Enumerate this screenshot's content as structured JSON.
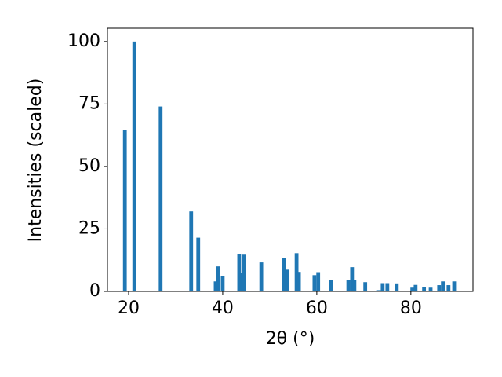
{
  "chart_data": {
    "type": "bar",
    "xlabel": "2θ (°)",
    "ylabel": "Intensities (scaled)",
    "x": [
      19.2,
      21.2,
      26.8,
      33.3,
      34.8,
      38.5,
      39.0,
      40.0,
      43.5,
      43.8,
      44.5,
      48.2,
      53.0,
      53.7,
      55.7,
      56.2,
      59.5,
      60.3,
      63.0,
      64.2,
      66.7,
      67.5,
      68.0,
      70.3,
      72.0,
      73.2,
      74.0,
      75.0,
      77.0,
      80.3,
      81.0,
      82.8,
      84.2,
      86.0,
      86.8,
      88.0,
      89.2
    ],
    "values": [
      64.6,
      100,
      74,
      32,
      21.5,
      4,
      10,
      6,
      15,
      7.5,
      14.7,
      11.6,
      13.5,
      8.7,
      15.3,
      7.8,
      6.5,
      7.7,
      4.6,
      0.3,
      4.6,
      9.7,
      4.7,
      3.7,
      0.3,
      0.5,
      3.3,
      3.3,
      3.2,
      1.5,
      2.6,
      1.8,
      1.5,
      2.5,
      4,
      2.5,
      4
    ],
    "color": "#1f77b4",
    "xlim": [
      15.5,
      93.2
    ],
    "ylim": [
      0,
      105.3
    ],
    "xticks": [
      20,
      40,
      60,
      80
    ],
    "yticks": [
      0,
      25,
      50,
      75,
      100
    ]
  }
}
